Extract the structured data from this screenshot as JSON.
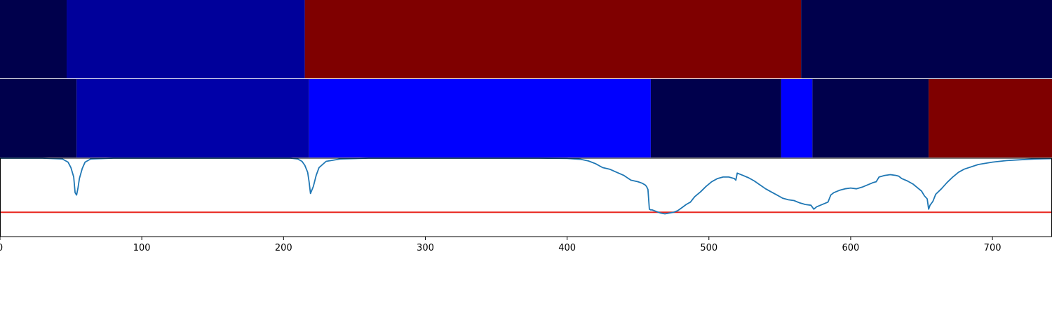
{
  "chart_data": {
    "type": "heatmap",
    "xlim": [
      0,
      742
    ],
    "x_ticks": [
      0,
      100,
      200,
      300,
      400,
      500,
      600,
      700
    ],
    "tick_labels": [
      "0",
      "100",
      "200",
      "300",
      "400",
      "500",
      "600",
      "700"
    ],
    "grid": false,
    "colors": {
      "navy_dark": "#00004c",
      "blue_mid": "#0000a0",
      "blue_bright": "#0000ff",
      "dark_red": "#7f0000",
      "line": "#1f77b4",
      "threshold": "#e8261f"
    },
    "segment_rows": [
      {
        "segments": [
          {
            "start": 0,
            "end": 47,
            "color": "#00004c"
          },
          {
            "start": 47,
            "end": 215,
            "color": "#00009a"
          },
          {
            "start": 215,
            "end": 565,
            "color": "#7f0000"
          },
          {
            "start": 565,
            "end": 742,
            "color": "#00004c"
          }
        ]
      },
      {
        "segments": [
          {
            "start": 0,
            "end": 54,
            "color": "#00004c"
          },
          {
            "start": 54,
            "end": 218,
            "color": "#0000a8"
          },
          {
            "start": 218,
            "end": 459,
            "color": "#0000ff"
          },
          {
            "start": 459,
            "end": 551,
            "color": "#00004c"
          },
          {
            "start": 551,
            "end": 573,
            "color": "#0000ff"
          },
          {
            "start": 573,
            "end": 655,
            "color": "#00004c"
          },
          {
            "start": 655,
            "end": 742,
            "color": "#7f0000"
          }
        ]
      }
    ],
    "line_panel": {
      "ylim": [
        0,
        1
      ],
      "threshold": 0.31,
      "series": [
        {
          "x": [
            0,
            30,
            44,
            48,
            50,
            52,
            53,
            54,
            55,
            56,
            58,
            60,
            64,
            80,
            150,
            205,
            210,
            213,
            215,
            217,
            218,
            219,
            221,
            223,
            225,
            230,
            240,
            260,
            300,
            380,
            400,
            410,
            415,
            420,
            425,
            430,
            435,
            440,
            445,
            450,
            453,
            455,
            456,
            457,
            458,
            459,
            460,
            463,
            466,
            469,
            472,
            475,
            478,
            481,
            484,
            487,
            490,
            494,
            498,
            502,
            506,
            510,
            514,
            518,
            519,
            520,
            524,
            528,
            532,
            536,
            540,
            544,
            548,
            552,
            556,
            560,
            564,
            568,
            572,
            574,
            576,
            580,
            584,
            586,
            588,
            592,
            596,
            600,
            604,
            608,
            612,
            616,
            618,
            620,
            624,
            628,
            632,
            634,
            636,
            640,
            644,
            648,
            650,
            652,
            654,
            655,
            656,
            658,
            660,
            664,
            668,
            672,
            676,
            680,
            690,
            700,
            710,
            720,
            730,
            742
          ],
          "y": [
            1.0,
            1.0,
            0.99,
            0.95,
            0.88,
            0.76,
            0.56,
            0.53,
            0.62,
            0.74,
            0.87,
            0.95,
            0.99,
            1.0,
            1.0,
            1.0,
            0.99,
            0.96,
            0.91,
            0.82,
            0.7,
            0.55,
            0.64,
            0.78,
            0.88,
            0.96,
            0.99,
            1.0,
            1.0,
            1.0,
            0.997,
            0.985,
            0.965,
            0.93,
            0.88,
            0.86,
            0.82,
            0.78,
            0.72,
            0.7,
            0.68,
            0.66,
            0.64,
            0.6,
            0.35,
            0.34,
            0.34,
            0.32,
            0.3,
            0.29,
            0.3,
            0.31,
            0.33,
            0.37,
            0.41,
            0.44,
            0.51,
            0.57,
            0.64,
            0.7,
            0.74,
            0.76,
            0.76,
            0.74,
            0.72,
            0.81,
            0.78,
            0.75,
            0.71,
            0.66,
            0.61,
            0.57,
            0.53,
            0.49,
            0.47,
            0.46,
            0.43,
            0.41,
            0.4,
            0.35,
            0.38,
            0.41,
            0.44,
            0.53,
            0.56,
            0.59,
            0.61,
            0.62,
            0.61,
            0.63,
            0.66,
            0.69,
            0.7,
            0.76,
            0.78,
            0.79,
            0.78,
            0.77,
            0.74,
            0.71,
            0.67,
            0.61,
            0.58,
            0.52,
            0.48,
            0.35,
            0.4,
            0.45,
            0.54,
            0.61,
            0.69,
            0.76,
            0.82,
            0.86,
            0.92,
            0.95,
            0.97,
            0.98,
            0.99,
            0.995
          ]
        }
      ]
    }
  }
}
